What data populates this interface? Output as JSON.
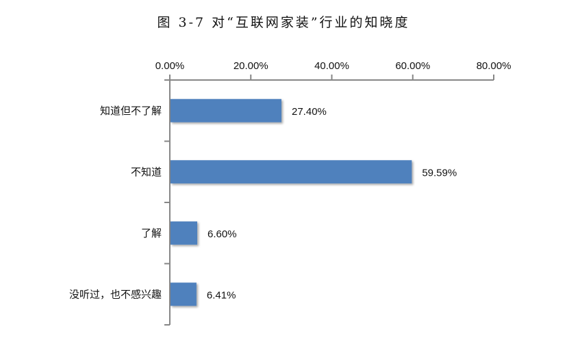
{
  "chart_data": {
    "type": "bar",
    "orientation": "horizontal",
    "title": "图  3-7  对“互联网家装”行业的知晓度",
    "categories": [
      "知道但不了解",
      "不知道",
      "了解",
      "没听过，也不感兴趣"
    ],
    "values": [
      27.4,
      59.59,
      6.6,
      6.41
    ],
    "data_labels": [
      "27.40%",
      "59.59%",
      "6.60%",
      "6.41%"
    ],
    "xlim": [
      0,
      80
    ],
    "x_ticks": [
      0,
      20,
      40,
      60,
      80
    ],
    "x_tick_labels": [
      "0.00%",
      "20.00%",
      "40.00%",
      "60.00%",
      "80.00%"
    ],
    "x_axis_position": "top",
    "grid": false,
    "legend": "none",
    "bar_color": "#4f81bd",
    "axis_color": "#868686"
  }
}
